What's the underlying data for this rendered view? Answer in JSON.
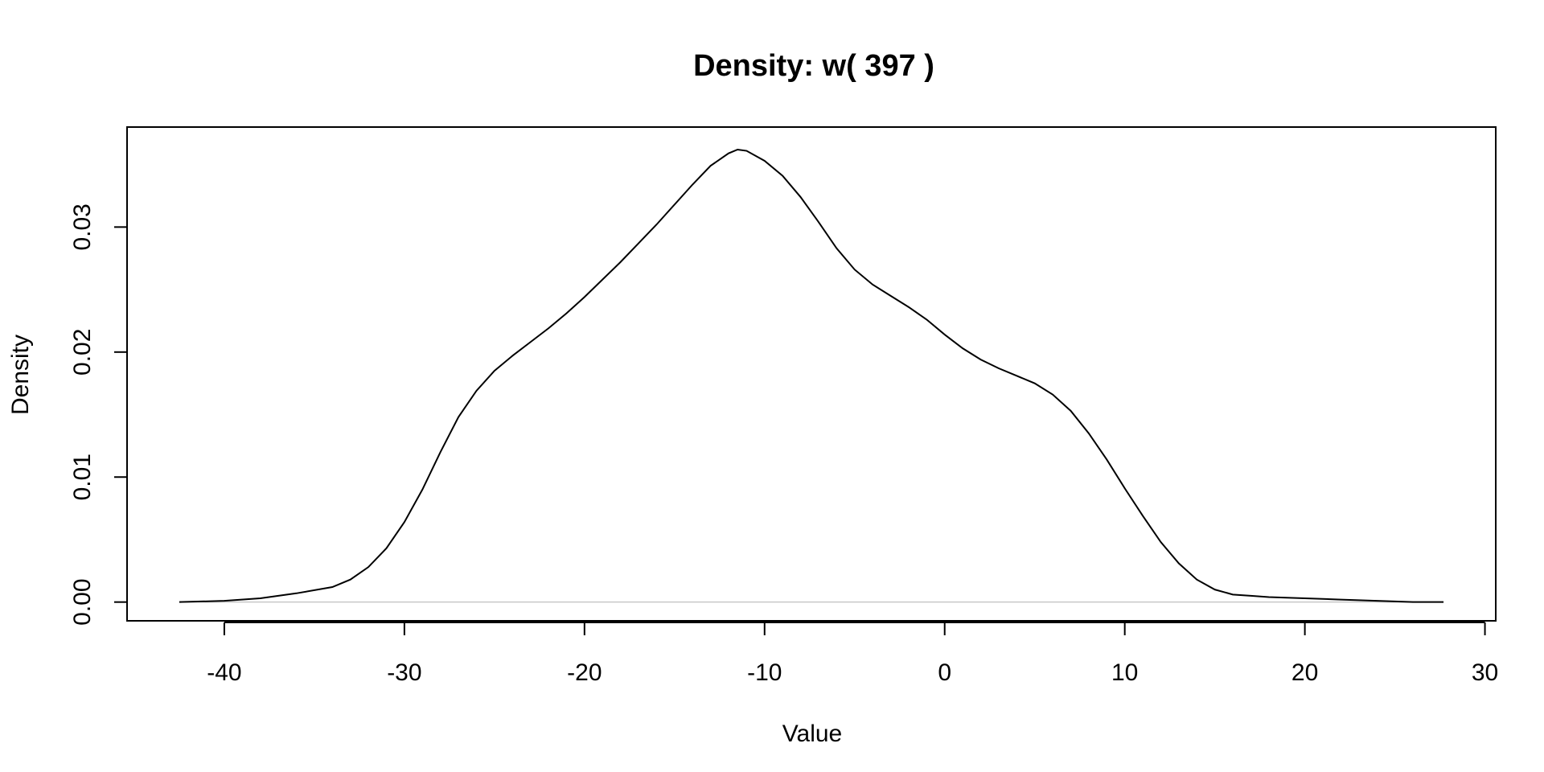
{
  "chart_data": {
    "type": "line",
    "title": "Density: w( 397 )",
    "xlabel": "Value",
    "ylabel": "Density",
    "xlim": [
      -45.4,
      30.6
    ],
    "ylim": [
      -0.0015,
      0.038
    ],
    "x_ticks": [
      -40,
      -30,
      -20,
      -10,
      0,
      10,
      20,
      30
    ],
    "x_tick_labels": [
      "-40",
      "-30",
      "-20",
      "-10",
      "0",
      "10",
      "20",
      "30"
    ],
    "y_ticks": [
      0.0,
      0.01,
      0.02,
      0.03
    ],
    "y_tick_labels": [
      "0.00",
      "0.01",
      "0.02",
      "0.03"
    ],
    "zero_line": true,
    "grid": false,
    "legend": "none",
    "series": [
      {
        "x": [
          -42.5,
          -40,
          -38,
          -36,
          -34,
          -33,
          -32,
          -31,
          -30,
          -29,
          -28,
          -27,
          -26,
          -25,
          -24,
          -23,
          -22,
          -21,
          -20,
          -19,
          -18,
          -17,
          -16,
          -15,
          -14,
          -13,
          -12,
          -11.5,
          -11,
          -10,
          -9,
          -8,
          -7,
          -6,
          -5,
          -4,
          -3,
          -2,
          -1,
          0,
          1,
          2,
          3,
          4,
          5,
          6,
          7,
          8,
          9,
          10,
          11,
          12,
          13,
          14,
          15,
          16,
          17,
          18,
          20,
          22,
          24,
          26,
          27.7
        ],
        "y": [
          0.0,
          0.0001,
          0.0003,
          0.0007,
          0.0012,
          0.0018,
          0.0028,
          0.0043,
          0.0064,
          0.009,
          0.012,
          0.0148,
          0.0169,
          0.0185,
          0.0197,
          0.0208,
          0.0219,
          0.0231,
          0.0244,
          0.0258,
          0.0272,
          0.0287,
          0.0302,
          0.0318,
          0.0334,
          0.0349,
          0.0359,
          0.0362,
          0.0361,
          0.0353,
          0.0341,
          0.0324,
          0.0304,
          0.0283,
          0.0266,
          0.0254,
          0.0245,
          0.0236,
          0.0226,
          0.0214,
          0.0203,
          0.0194,
          0.0187,
          0.0181,
          0.0175,
          0.0166,
          0.0153,
          0.0135,
          0.0114,
          0.0091,
          0.0069,
          0.0048,
          0.0031,
          0.0018,
          0.001,
          0.0006,
          0.0005,
          0.0004,
          0.0003,
          0.0002,
          0.0001,
          0.0,
          0.0
        ],
        "color": "#000000"
      }
    ]
  }
}
